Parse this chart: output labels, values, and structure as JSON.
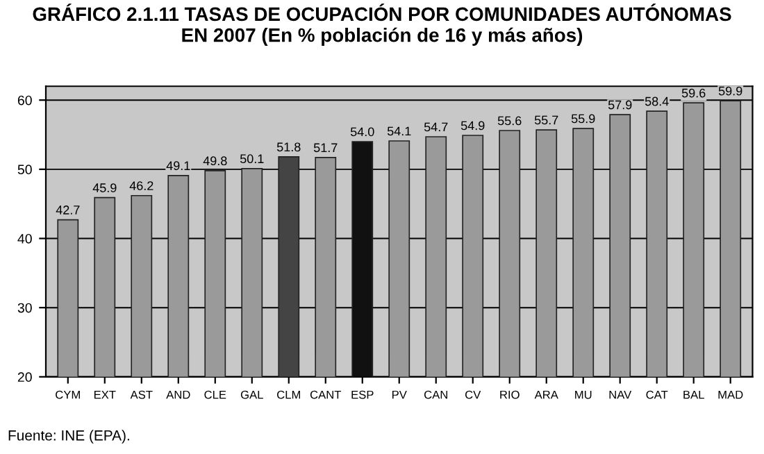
{
  "chart_data": {
    "type": "bar",
    "title": "GRÁFICO 2.1.11 TASAS DE OCUPACIÓN POR COMUNIDADES AUTÓNOMAS\nEN 2007 (En % población de 16 y más años)",
    "categories": [
      "CYM",
      "EXT",
      "AST",
      "AND",
      "CLE",
      "GAL",
      "CLM",
      "CANT",
      "ESP",
      "PV",
      "CAN",
      "CV",
      "RIO",
      "ARA",
      "MU",
      "NAV",
      "CAT",
      "BAL",
      "MAD"
    ],
    "values": [
      42.7,
      45.9,
      46.2,
      49.1,
      49.8,
      50.1,
      51.8,
      51.7,
      54.0,
      54.1,
      54.7,
      54.9,
      55.6,
      55.7,
      55.9,
      57.9,
      58.4,
      59.6,
      59.9
    ],
    "value_labels": [
      "42.7",
      "45.9",
      "46.2",
      "49.1",
      "49.8",
      "50.1",
      "51.8",
      "51.7",
      "54.0",
      "54.1",
      "54.7",
      "54.9",
      "55.6",
      "55.7",
      "55.9",
      "57.9",
      "58.4",
      "59.6",
      "59.9"
    ],
    "colors": [
      "#9a9a9a",
      "#9a9a9a",
      "#9a9a9a",
      "#9a9a9a",
      "#9a9a9a",
      "#9a9a9a",
      "#444444",
      "#9a9a9a",
      "#111111",
      "#9a9a9a",
      "#9a9a9a",
      "#9a9a9a",
      "#9a9a9a",
      "#9a9a9a",
      "#9a9a9a",
      "#9a9a9a",
      "#9a9a9a",
      "#9a9a9a",
      "#9a9a9a"
    ],
    "ylim": [
      20,
      62
    ],
    "yticks": [
      20,
      30,
      40,
      50,
      60
    ],
    "grid": "y",
    "legend": false,
    "annotations": [
      "Fuente: INE (EPA)."
    ]
  }
}
